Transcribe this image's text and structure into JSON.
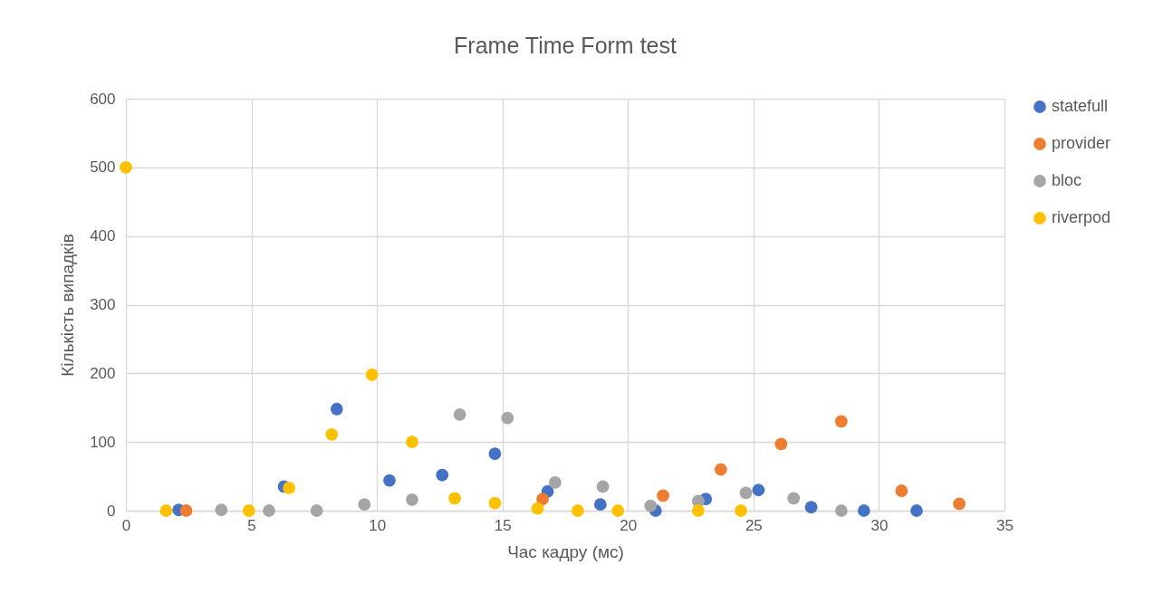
{
  "chart_data": {
    "type": "scatter",
    "title": "Frame Time Form test",
    "xlabel": "Час кадру (мс)",
    "ylabel": "Кількість випадків",
    "xlim": [
      0,
      35
    ],
    "xticks": [
      0,
      5,
      10,
      15,
      20,
      25,
      30,
      35
    ],
    "ylim": [
      0,
      600
    ],
    "yticks": [
      0,
      100,
      200,
      300,
      400,
      500,
      600
    ],
    "grid": true,
    "legend": "right",
    "marker": "circle",
    "series": [
      {
        "name": "statefull",
        "color": "#4472c4",
        "x": [
          2.1,
          6.3,
          8.4,
          10.5,
          12.6,
          14.7,
          16.8,
          18.9,
          21.1,
          23.1,
          25.2,
          27.3,
          29.4,
          31.5
        ],
        "values": [
          1,
          35,
          148,
          44,
          52,
          83,
          28,
          9,
          0,
          17,
          30,
          5,
          0,
          0
        ]
      },
      {
        "name": "provider",
        "color": "#ed7d31",
        "x": [
          2.4,
          16.6,
          21.4,
          23.7,
          26.1,
          28.5,
          30.9,
          33.2
        ],
        "values": [
          0,
          17,
          22,
          60,
          97,
          130,
          29,
          10
        ]
      },
      {
        "name": "bloc",
        "color": "#a5a5a5",
        "x": [
          3.8,
          5.7,
          7.6,
          9.5,
          11.4,
          13.3,
          15.2,
          17.1,
          19.0,
          20.9,
          22.8,
          24.7,
          26.6,
          28.5
        ],
        "values": [
          1,
          0,
          0,
          9,
          16,
          140,
          135,
          41,
          35,
          7,
          14,
          26,
          18,
          0
        ]
      },
      {
        "name": "riverpod",
        "color": "#ffc000",
        "x": [
          0,
          1.6,
          4.9,
          6.5,
          8.2,
          9.8,
          11.4,
          13.1,
          14.7,
          16.4,
          18.0,
          19.6,
          22.8,
          24.5
        ],
        "values": [
          500,
          0,
          0,
          33,
          111,
          198,
          100,
          18,
          11,
          3,
          0,
          0,
          0,
          0
        ]
      }
    ]
  }
}
